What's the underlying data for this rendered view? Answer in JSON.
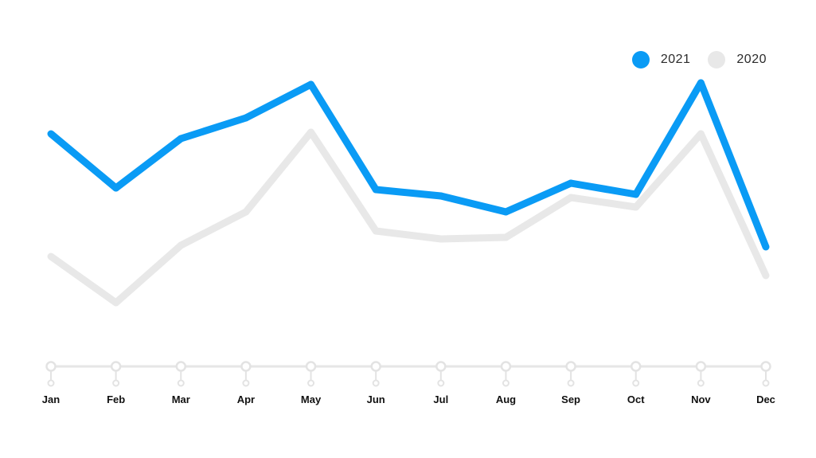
{
  "chart_data": {
    "type": "line",
    "categories": [
      "Jan",
      "Feb",
      "Mar",
      "Apr",
      "May",
      "Jun",
      "Jul",
      "Aug",
      "Sep",
      "Oct",
      "Nov",
      "Dec"
    ],
    "series": [
      {
        "name": "2020",
        "color": "#e8e8e8",
        "values": [
          59,
          30,
          66,
          87,
          137,
          75,
          70,
          71,
          96,
          90,
          136,
          47
        ]
      },
      {
        "name": "2021",
        "color": "#0a9bf5",
        "values": [
          136,
          102,
          133,
          146,
          167,
          101,
          97,
          87,
          105,
          98,
          168,
          65
        ]
      }
    ],
    "ylim": [
      0,
      200
    ],
    "title": "",
    "xlabel": "",
    "ylabel": "",
    "grid": false,
    "legend": "top-right"
  },
  "legend": {
    "items": [
      {
        "label": "2021",
        "color": "#0a9bf5"
      },
      {
        "label": "2020",
        "color": "#e8e8e8"
      }
    ]
  }
}
